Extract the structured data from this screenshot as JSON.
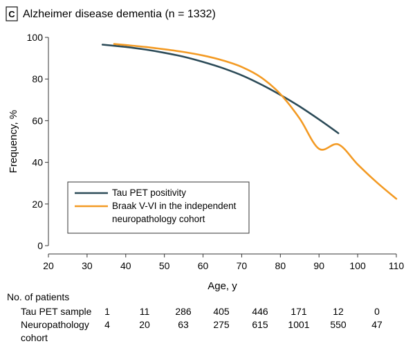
{
  "panel": {
    "letter": "C",
    "title": "Alzheimer disease dementia (n = 1332)"
  },
  "chart_data": {
    "type": "line",
    "title": "Alzheimer disease dementia (n = 1332)",
    "xlabel": "Age, y",
    "ylabel": "Frequency, %",
    "xlim": [
      20,
      110
    ],
    "ylim": [
      0,
      100
    ],
    "xticks": [
      20,
      30,
      40,
      50,
      60,
      70,
      80,
      90,
      100,
      110
    ],
    "yticks": [
      0,
      20,
      40,
      60,
      80,
      100
    ],
    "series": [
      {
        "name": "Tau PET positivity",
        "color": "#2b4a57",
        "x": [
          34,
          40,
          45,
          50,
          55,
          60,
          65,
          70,
          75,
          80,
          85,
          90,
          95
        ],
        "y": [
          96.5,
          95.4,
          94.2,
          92.6,
          90.7,
          88.2,
          85.3,
          81.8,
          77.4,
          72.4,
          66.8,
          60.6,
          54.0
        ]
      },
      {
        "name": "Braak V-VI in the independent neuropathology cohort",
        "color": "#f39a23",
        "x": [
          37,
          40,
          45,
          50,
          55,
          60,
          65,
          70,
          75,
          80,
          85,
          90,
          95,
          100,
          105,
          110
        ],
        "y": [
          96.8,
          96.3,
          95.4,
          94.3,
          93.0,
          91.3,
          89.0,
          85.8,
          80.8,
          72.8,
          61.0,
          46.5,
          48.6,
          39.0,
          30.3,
          22.5
        ]
      }
    ],
    "legend": {
      "position": "bottom-left",
      "entries": [
        {
          "lines": [
            "Tau PET positivity"
          ]
        },
        {
          "lines": [
            "Braak V-VI in the independent",
            "neuropathology cohort"
          ]
        }
      ]
    }
  },
  "patients_table": {
    "header": "No. of patients",
    "rows": [
      {
        "label_lines": [
          "Tau PET sample"
        ],
        "values": [
          "1",
          "11",
          "286",
          "405",
          "446",
          "171",
          "12",
          "0"
        ]
      },
      {
        "label_lines": [
          "Neuropathology",
          "cohort"
        ],
        "values": [
          "4",
          "20",
          "63",
          "275",
          "615",
          "1001",
          "550",
          "47"
        ]
      }
    ]
  }
}
